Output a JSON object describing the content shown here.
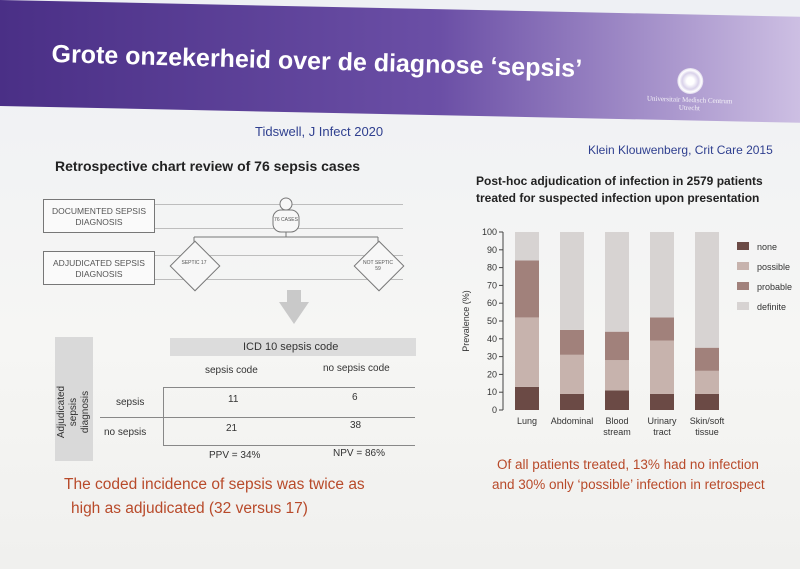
{
  "title": "Grote onzekerheid over de diagnose ‘sepsis’",
  "logo": {
    "line1": "Universitair Medisch Centrum",
    "line2": "Utrecht"
  },
  "left": {
    "citation": "Tidswell, J Infect 2020",
    "heading": "Retrospective chart review of 76 sepsis cases",
    "flow": {
      "documented": "DOCUMENTED SEPSIS DIAGNOSIS",
      "adjudicated": "ADJUDICATED SEPSIS DIAGNOSIS",
      "cases": "76 CASES",
      "septic": "SEPTIC 17",
      "not_septic": "NOT SEPTIC 59"
    },
    "table": {
      "title": "ICD 10 sepsis code",
      "row_axis": "Adjudicated sepsis diagnosis",
      "col_headers": [
        "sepsis code",
        "no sepsis code"
      ],
      "rows": [
        {
          "label": "sepsis",
          "values": [
            "11",
            "6"
          ]
        },
        {
          "label": "no sepsis",
          "values": [
            "21",
            "38"
          ]
        }
      ],
      "ppv": "PPV = 34%",
      "npv": "NPV = 86%"
    },
    "conclusion_line1": "The coded incidence of sepsis was twice as",
    "conclusion_line2": "high as adjudicated (32 versus 17)"
  },
  "right": {
    "citation": "Klein Klouwenberg, Crit Care 2015",
    "heading_line1": "Post-hoc adjudication of infection in 2579 patients",
    "heading_line2": "treated for suspected infection upon presentation",
    "conclusion_line1": "Of all patients treated, 13% had no infection",
    "conclusion_line2": "and 30% only ‘possible’ infection in retrospect"
  },
  "chart_data": {
    "type": "bar",
    "stacked": true,
    "categories": [
      "Lung",
      "Abdominal",
      "Blood stream",
      "Urinary tract",
      "Skin/soft tissue"
    ],
    "category_labels": [
      [
        "Lung"
      ],
      [
        "Abdominal"
      ],
      [
        "Blood",
        "stream"
      ],
      [
        "Urinary",
        "tract"
      ],
      [
        "Skin/soft",
        "tissue"
      ]
    ],
    "series": [
      {
        "name": "none",
        "color": "#6b4a45",
        "values": [
          13,
          9,
          11,
          9,
          9
        ]
      },
      {
        "name": "possible",
        "color": "#c7b3ad",
        "values": [
          39,
          22,
          17,
          30,
          13
        ]
      },
      {
        "name": "probable",
        "color": "#a1817b",
        "values": [
          32,
          14,
          16,
          13,
          13
        ]
      },
      {
        "name": "definite",
        "color": "#d7d3d2",
        "values": [
          16,
          55,
          56,
          48,
          65
        ]
      }
    ],
    "ylabel": "Prevalence (%)",
    "ylim": [
      0,
      100
    ],
    "yticks": [
      0,
      10,
      20,
      30,
      40,
      50,
      60,
      70,
      80,
      90,
      100
    ],
    "legend_position": "right"
  }
}
